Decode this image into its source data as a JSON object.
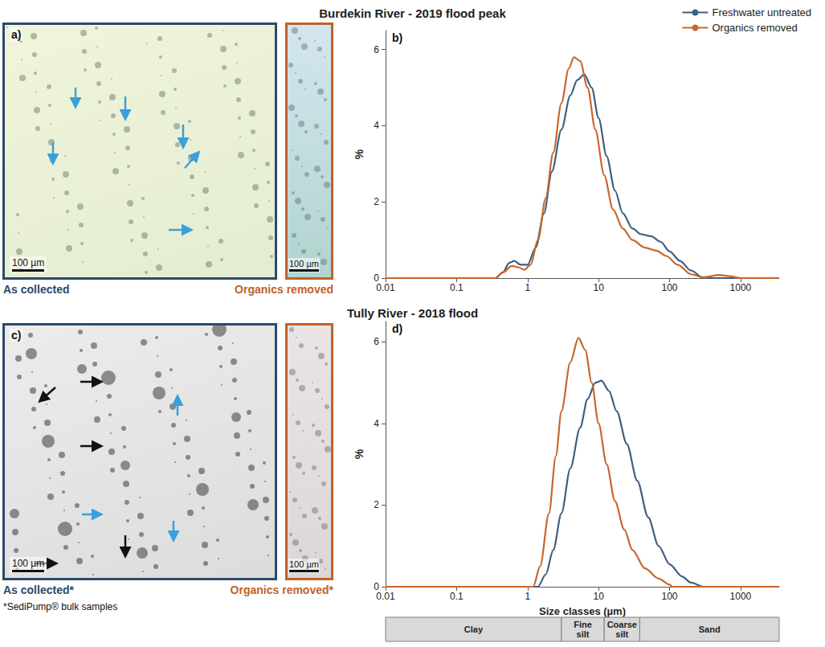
{
  "chart_data": [
    {
      "type": "line",
      "title": "Burdekin River - 2019 flood peak",
      "panel_label": "b)",
      "ylabel": "%",
      "log": "x",
      "xlim": [
        0.01,
        3500
      ],
      "xticks": [
        0.01,
        0.1,
        1,
        10,
        100,
        1000
      ],
      "ylim": [
        0,
        6.5
      ],
      "yticks": [
        0,
        2,
        4,
        6
      ],
      "grid": false,
      "legend": "top-right",
      "series": [
        {
          "name": "Freshwater untreated",
          "color": "#3d5f80",
          "x": [
            0.01,
            0.35,
            0.45,
            0.55,
            0.65,
            0.8,
            1.0,
            1.3,
            1.7,
            2.2,
            3,
            4,
            5,
            6.3,
            8,
            10,
            13,
            17,
            22,
            30,
            40,
            55,
            75,
            100,
            140,
            200,
            300,
            3500
          ],
          "values": [
            0,
            0,
            0.15,
            0.4,
            0.45,
            0.35,
            0.35,
            0.8,
            1.7,
            2.8,
            3.9,
            4.8,
            5.2,
            5.35,
            5.0,
            4.2,
            3.2,
            2.3,
            1.7,
            1.3,
            1.15,
            1.1,
            0.95,
            0.7,
            0.45,
            0.2,
            0,
            0
          ]
        },
        {
          "name": "Organics removed",
          "color": "#c8662b",
          "x": [
            0.01,
            0.35,
            0.45,
            0.6,
            0.75,
            0.9,
            1.1,
            1.4,
            1.8,
            2.3,
            3,
            3.8,
            4.5,
            5.5,
            7,
            9,
            12,
            16,
            22,
            30,
            45,
            65,
            90,
            130,
            200,
            300,
            500,
            700,
            1000,
            3500
          ],
          "values": [
            0,
            0,
            0.15,
            0.32,
            0.28,
            0.22,
            0.35,
            1.0,
            2.1,
            3.3,
            4.6,
            5.5,
            5.8,
            5.7,
            5.0,
            3.9,
            2.7,
            1.8,
            1.3,
            1.0,
            0.8,
            0.72,
            0.58,
            0.35,
            0.1,
            0.02,
            0.08,
            0.05,
            0,
            0
          ]
        }
      ]
    },
    {
      "type": "line",
      "title": "Tully River - 2018 flood",
      "panel_label": "d)",
      "ylabel": "%",
      "xlabel": "Size classes (µm)",
      "log": "x",
      "xlim": [
        0.01,
        3500
      ],
      "xticks": [
        0.01,
        0.1,
        1,
        10,
        100,
        1000
      ],
      "ylim": [
        0,
        6.5
      ],
      "yticks": [
        0,
        2,
        4,
        6
      ],
      "grid": false,
      "series": [
        {
          "name": "Freshwater untreated",
          "color": "#3d5f80",
          "x": [
            0.01,
            1.4,
            1.8,
            2.3,
            3,
            4,
            5.5,
            7,
            9,
            11,
            14,
            18,
            25,
            35,
            50,
            70,
            100,
            150,
            200,
            300,
            3500
          ],
          "values": [
            0,
            0,
            0.3,
            0.9,
            1.8,
            2.9,
            3.9,
            4.6,
            5.0,
            5.05,
            4.8,
            4.3,
            3.5,
            2.6,
            1.7,
            1.0,
            0.55,
            0.25,
            0.1,
            0,
            0
          ]
        },
        {
          "name": "Organics removed",
          "color": "#c8662b",
          "x": [
            0.01,
            1.2,
            1.5,
            2,
            2.5,
            3,
            4,
            5.2,
            6.5,
            8,
            10,
            13,
            17,
            23,
            30,
            45,
            70,
            100,
            110,
            3500
          ],
          "values": [
            0,
            0,
            0.5,
            1.8,
            3.2,
            4.3,
            5.5,
            6.1,
            5.8,
            5.0,
            4.0,
            3.0,
            2.1,
            1.4,
            0.9,
            0.45,
            0.2,
            0.05,
            0,
            0
          ]
        }
      ],
      "size_classes": [
        {
          "name": "Clay",
          "range": [
            0.01,
            3
          ]
        },
        {
          "name": "Fine silt",
          "range": [
            3,
            12
          ]
        },
        {
          "name": "Coarse silt",
          "range": [
            12,
            38
          ]
        },
        {
          "name": "Sand",
          "range": [
            38,
            3500
          ]
        }
      ]
    }
  ],
  "images": [
    {
      "panel_label": "a)",
      "views": [
        {
          "caption": "As collected",
          "scale_bar": "100 µm"
        },
        {
          "caption": "Organics removed",
          "scale_bar": "100 µm"
        }
      ]
    },
    {
      "panel_label": "c)",
      "views": [
        {
          "caption": "As collected*",
          "scale_bar": "100 µm"
        },
        {
          "caption": "Organics removed*",
          "scale_bar": "100 µm"
        }
      ],
      "footnote": "*SediPump® bulk samples"
    }
  ]
}
